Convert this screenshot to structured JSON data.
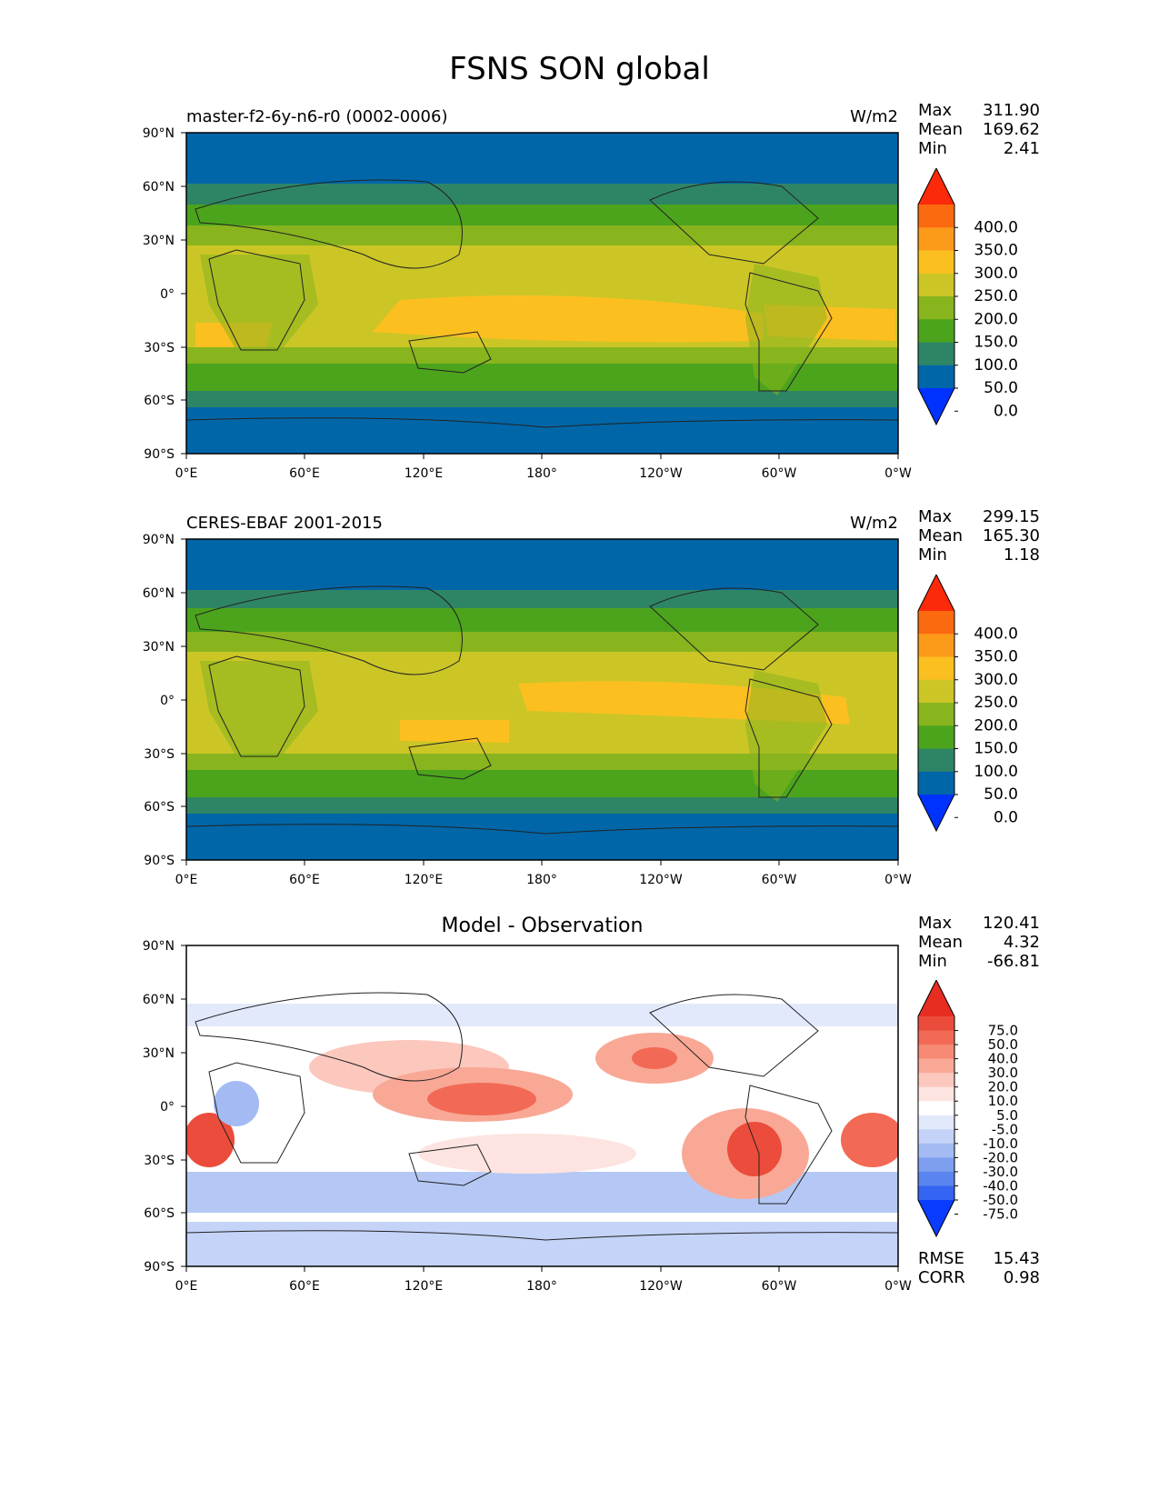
{
  "title": "FSNS SON global",
  "lon_ticks": [
    "0°E",
    "60°E",
    "120°E",
    "180°",
    "120°W",
    "60°W",
    "0°W"
  ],
  "lat_ticks": [
    "90°N",
    "60°N",
    "30°N",
    "0°",
    "30°S",
    "60°S",
    "90°S"
  ],
  "colors": {
    "abs_levels": [
      "#0032ff",
      "#0066a8",
      "#2e8565",
      "#4ba41c",
      "#88b41e",
      "#cbc626",
      "#fcbf20",
      "#fc9a1a",
      "#fc6a10",
      "#fc2a0a"
    ],
    "diff_levels": [
      "#0a3cff",
      "#3364f2",
      "#5a85ee",
      "#7e9ff0",
      "#a3baf3",
      "#c4d3f7",
      "#e2e9fb",
      "#ffffff",
      "#fde4e0",
      "#fcc7bd",
      "#f9a896",
      "#f68a75",
      "#f26a55",
      "#ec4c3b",
      "#e62d22"
    ]
  },
  "panels": [
    {
      "title": "master-f2-6y-n6-r0 (0002-0006)",
      "units": "W/m2",
      "stats": {
        "max_label": "Max",
        "max": "311.90",
        "mean_label": "Mean",
        "mean": "169.62",
        "min_label": "Min",
        "min": "2.41"
      },
      "colorbar_labels": [
        "400.0",
        "350.0",
        "300.0",
        "250.0",
        "200.0",
        "150.0",
        "100.0",
        "50.0",
        "0.0"
      ]
    },
    {
      "title": "CERES-EBAF 2001-2015",
      "units": "W/m2",
      "stats": {
        "max_label": "Max",
        "max": "299.15",
        "mean_label": "Mean",
        "mean": "165.30",
        "min_label": "Min",
        "min": "1.18"
      },
      "colorbar_labels": [
        "400.0",
        "350.0",
        "300.0",
        "250.0",
        "200.0",
        "150.0",
        "100.0",
        "50.0",
        "0.0"
      ]
    },
    {
      "title": "Model - Observation",
      "units": "",
      "stats": {
        "max_label": "Max",
        "max": "120.41",
        "mean_label": "Mean",
        "mean": "4.32",
        "min_label": "Min",
        "min": "-66.81"
      },
      "colorbar_labels": [
        "75.0",
        "50.0",
        "40.0",
        "30.0",
        "20.0",
        "10.0",
        "5.0",
        "-5.0",
        "-10.0",
        "-20.0",
        "-30.0",
        "-40.0",
        "-50.0",
        "-75.0"
      ],
      "metrics": {
        "rmse_label": "RMSE",
        "rmse": "15.43",
        "corr_label": "CORR",
        "corr": "0.98"
      }
    }
  ]
}
